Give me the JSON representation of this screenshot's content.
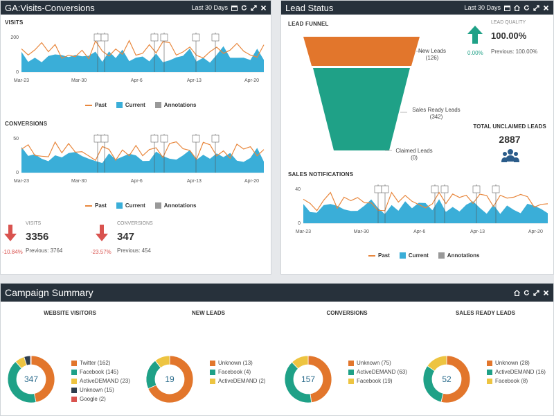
{
  "colors": {
    "orange": "#e2762c",
    "teal": "#1fa187",
    "blue": "#3aaed8",
    "gray": "#999999",
    "dark": "#27313b",
    "yellow": "#edc441",
    "navy": "#2d3d4d",
    "red": "#d9534f",
    "green": "#1fa187"
  },
  "ga": {
    "title": "GA:Visits-Conversions",
    "period": "Last 30 Days",
    "visits": {
      "title": "VISITS",
      "ymax": "200",
      "ymin": "0",
      "xlabels": [
        "Mar-23",
        "Mar-30",
        "Apr-6",
        "Apr-13",
        "Apr-20"
      ]
    },
    "conversions": {
      "title": "CONVERSIONS",
      "ymax": "50",
      "ymin": "0",
      "xlabels": [
        "Mar-23",
        "Mar-30",
        "Apr-6",
        "Apr-13",
        "Apr-20"
      ]
    },
    "legend": {
      "past": "Past",
      "current": "Current",
      "annotations": "Annotations"
    },
    "stats": {
      "visits": {
        "label": "VISITS",
        "value": "3356",
        "previous": "Previous: 3764",
        "pct": "-10.84%"
      },
      "conversions": {
        "label": "CONVERSIONS",
        "value": "347",
        "previous": "Previous: 454",
        "pct": "-23.57%"
      }
    }
  },
  "lead": {
    "title": "Lead Status",
    "period": "Last 30 Days",
    "funnel_title": "LEAD FUNNEL",
    "funnel": [
      {
        "label": "New Leads",
        "count": "(126)"
      },
      {
        "label": "Sales Ready Leads",
        "count": "(342)"
      },
      {
        "label": "Claimed Leads",
        "count": "(0)"
      }
    ],
    "quality": {
      "label": "LEAD QUALITY",
      "value": "100.00%",
      "pct": "0.00%",
      "previous": "Previous: 100.00%"
    },
    "unclaimed": {
      "label": "TOTAL UNCLAIMED LEADS",
      "value": "2887"
    },
    "sales": {
      "title": "SALES NOTIFICATIONS",
      "ymax": "40",
      "ymin": "0",
      "xlabels": [
        "Mar-23",
        "Mar-30",
        "Apr-6",
        "Apr-13",
        "Apr-20"
      ]
    },
    "legend": {
      "past": "Past",
      "current": "Current",
      "annotations": "Annotations"
    }
  },
  "campaign": {
    "title": "Campaign Summary",
    "donuts": [
      {
        "title": "WEBSITE VISITORS",
        "center": "347",
        "slices": [
          {
            "label": "Twitter (162)",
            "value": 162,
            "color": "#e2762c"
          },
          {
            "label": "Facebook (145)",
            "value": 145,
            "color": "#1fa187"
          },
          {
            "label": "ActiveDEMAND (23)",
            "value": 23,
            "color": "#edc441"
          },
          {
            "label": "Unknown (15)",
            "value": 15,
            "color": "#2d3d4d"
          },
          {
            "label": "Google (2)",
            "value": 2,
            "color": "#d9534f"
          }
        ]
      },
      {
        "title": "NEW LEADS",
        "center": "19",
        "slices": [
          {
            "label": "Unknown (13)",
            "value": 13,
            "color": "#e2762c"
          },
          {
            "label": "Facebook (4)",
            "value": 4,
            "color": "#1fa187"
          },
          {
            "label": "ActiveDEMAND (2)",
            "value": 2,
            "color": "#edc441"
          }
        ]
      },
      {
        "title": "CONVERSIONS",
        "center": "157",
        "slices": [
          {
            "label": "Unknown (75)",
            "value": 75,
            "color": "#e2762c"
          },
          {
            "label": "ActiveDEMAND (63)",
            "value": 63,
            "color": "#1fa187"
          },
          {
            "label": "Facebook (19)",
            "value": 19,
            "color": "#edc441"
          }
        ]
      },
      {
        "title": "SALES READY LEADS",
        "center": "52",
        "slices": [
          {
            "label": "Unknown (28)",
            "value": 28,
            "color": "#e2762c"
          },
          {
            "label": "ActiveDEMAND (16)",
            "value": 16,
            "color": "#1fa187"
          },
          {
            "label": "Facebook (8)",
            "value": 8,
            "color": "#edc441"
          }
        ]
      }
    ]
  }
}
